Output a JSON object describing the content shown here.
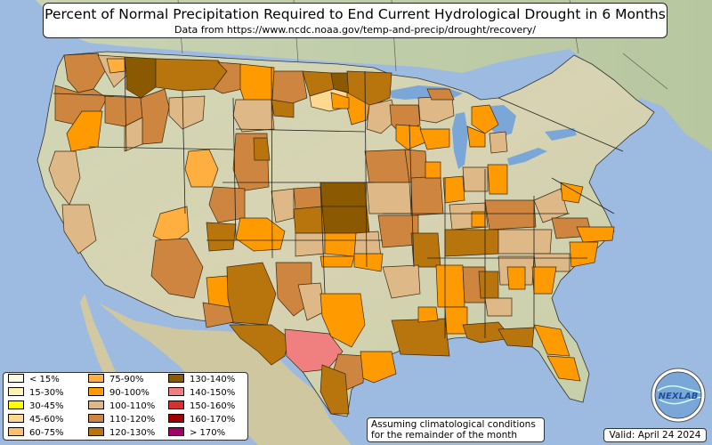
{
  "title": "Percent of Normal Precipitation Required to End Current Hydrological Drought in 6 Months",
  "subtitle": "Data from https://www.ncdc.noaa.gov/temp-and-precip/drought/recovery/",
  "note": "Assuming climatological conditions\nfor the remainder of the month",
  "valid": "Valid: April 24 2024",
  "logo_text": "NEXLAB",
  "legend": [
    {
      "label": "< 15%",
      "color": "#fffbe0"
    },
    {
      "label": "15-30%",
      "color": "#fff2b0"
    },
    {
      "label": "30-45%",
      "color": "#ffff00"
    },
    {
      "label": "45-60%",
      "color": "#ffd890"
    },
    {
      "label": "60-75%",
      "color": "#ffbf70"
    },
    {
      "label": "75-90%",
      "color": "#ffae40"
    },
    {
      "label": "90-100%",
      "color": "#ff9a00"
    },
    {
      "label": "100-110%",
      "color": "#deb887"
    },
    {
      "label": "110-120%",
      "color": "#cd853f"
    },
    {
      "label": "120-130%",
      "color": "#b8740d"
    },
    {
      "label": "130-140%",
      "color": "#8b5a00"
    },
    {
      "label": "140-150%",
      "color": "#f08080"
    },
    {
      "label": "150-160%",
      "color": "#d83030"
    },
    {
      "label": "160-170%",
      "color": "#a00000"
    },
    {
      "label": "> 170%",
      "color": "#a0006a"
    }
  ]
}
